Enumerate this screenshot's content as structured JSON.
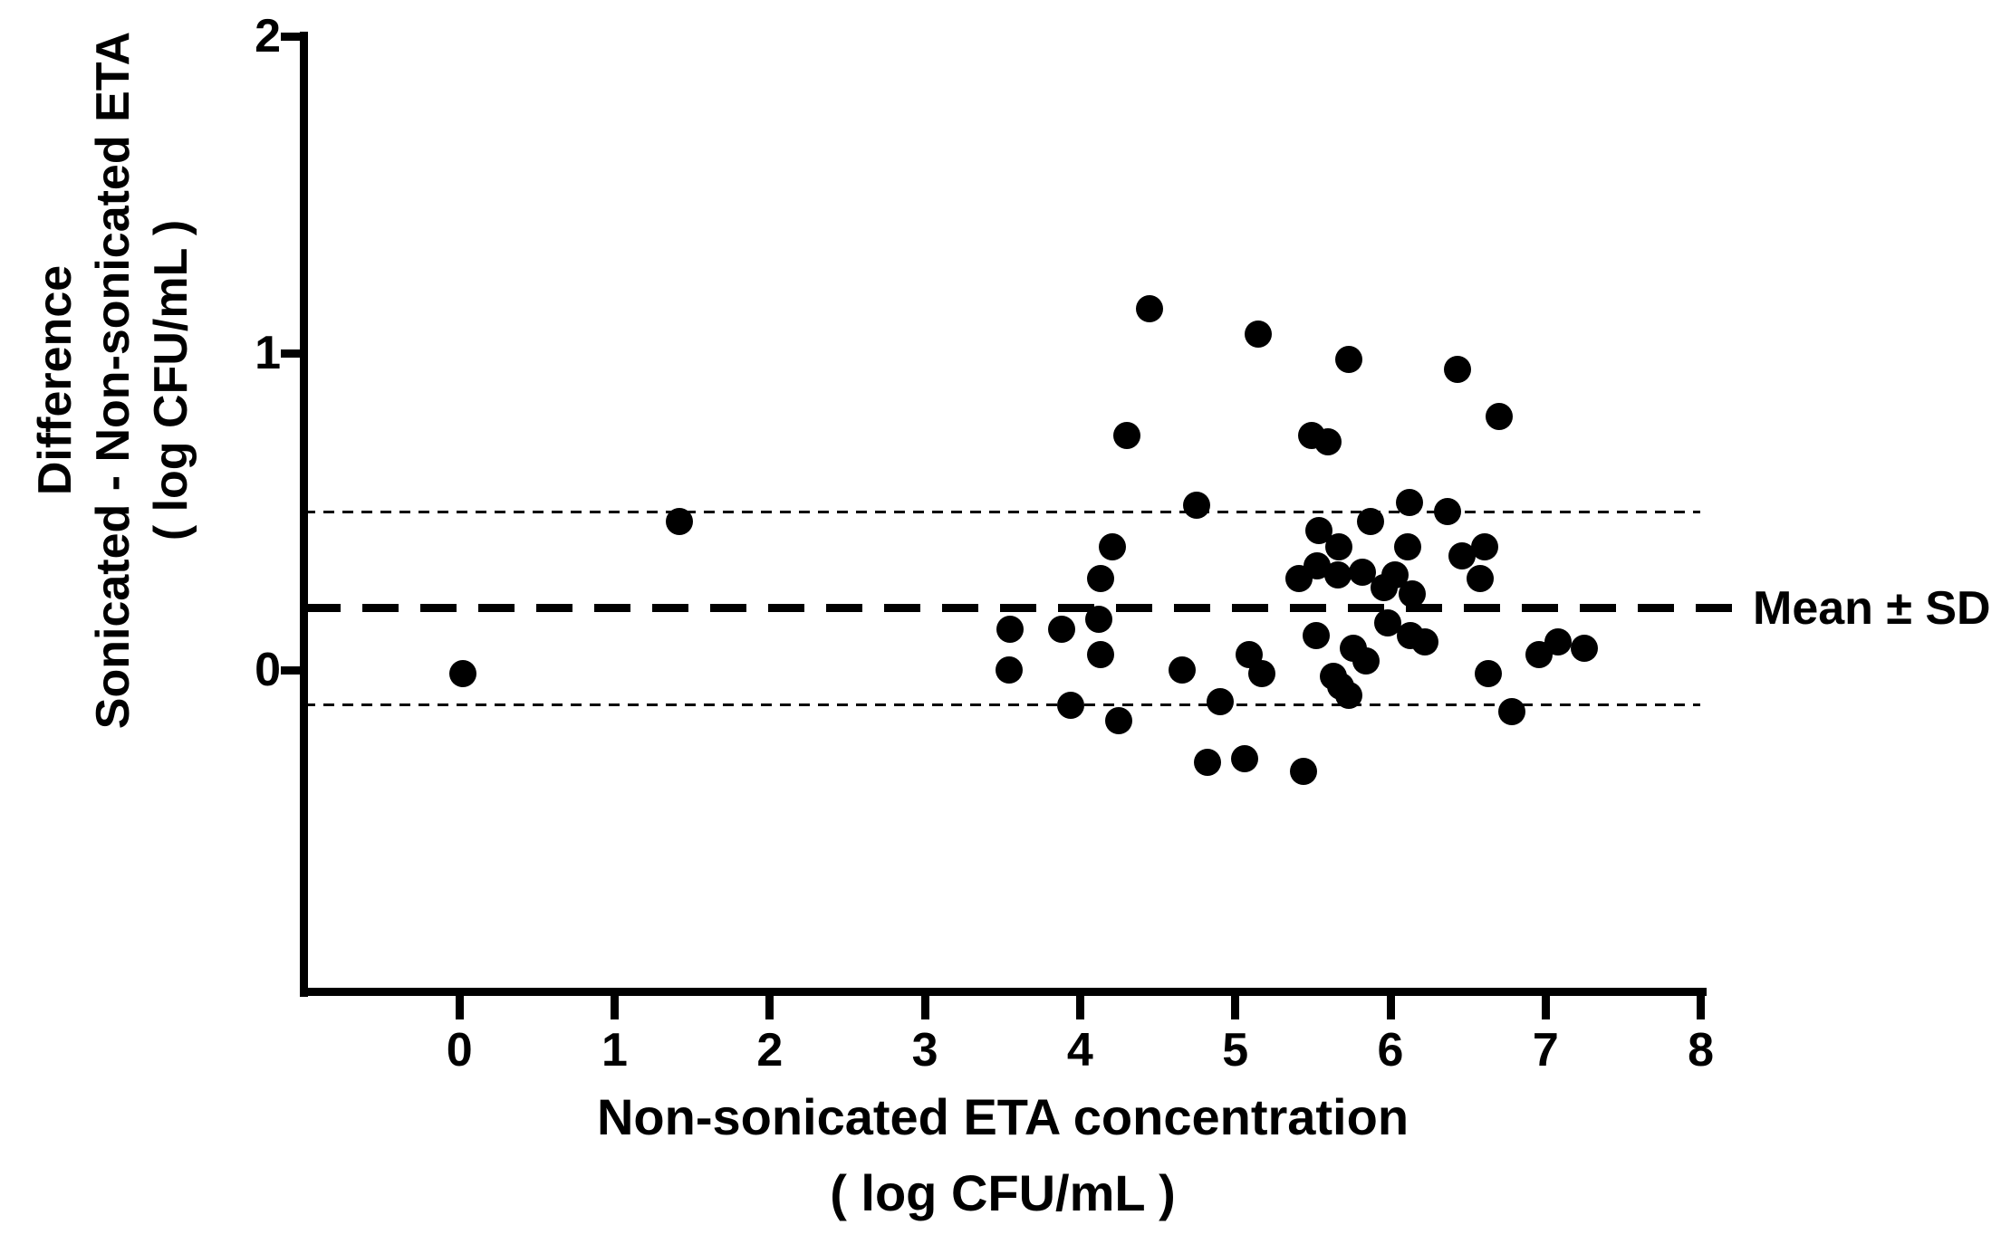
{
  "figure": {
    "background": "#ffffff",
    "ink_color": "#000000",
    "y_axis": {
      "title_lines": [
        "Difference",
        "Sonicated - Non-sonicated ETA",
        "( log CFU/mL )"
      ],
      "tick_labels": [
        "0",
        "1",
        "2"
      ],
      "tick_values": [
        0,
        1,
        2
      ]
    },
    "x_axis": {
      "title_lines": [
        "Non-sonicated ETA concentration",
        "( log CFU/mL )"
      ],
      "tick_labels": [
        "0",
        "1",
        "2",
        "3",
        "4",
        "5",
        "6",
        "7",
        "8"
      ],
      "tick_values": [
        0,
        1,
        2,
        3,
        4,
        5,
        6,
        7,
        8
      ]
    },
    "annotation_label": "Mean ± SD"
  },
  "chart_data": {
    "type": "scatter",
    "title": "",
    "xlabel": "Non-sonicated ETA concentration ( log CFU/mL )",
    "ylabel": "Difference Sonicated - Non-sonicated ETA ( log CFU/mL )",
    "xlim": [
      -1,
      8
    ],
    "ylim": [
      -1.02,
      2
    ],
    "x_ticks": [
      0,
      1,
      2,
      3,
      4,
      5,
      6,
      7,
      8
    ],
    "y_ticks": [
      0,
      1,
      2
    ],
    "grid": false,
    "legend_position": "right-of-mean-line",
    "marker": "filled-circle",
    "marker_color": "#000000",
    "reference_lines": {
      "mean": 0.195,
      "mean_plus_sd": 0.5,
      "mean_minus_sd": -0.11,
      "mean_style": "bold-dashed",
      "sd_style": "thin-dotted",
      "label": "Mean ± SD"
    },
    "points": [
      [
        0.02,
        -0.01
      ],
      [
        1.42,
        0.47
      ],
      [
        3.54,
        0.0
      ],
      [
        3.55,
        0.13
      ],
      [
        3.88,
        0.13
      ],
      [
        3.94,
        -0.11
      ],
      [
        4.12,
        0.16
      ],
      [
        4.13,
        0.29
      ],
      [
        4.13,
        0.05
      ],
      [
        4.21,
        0.39
      ],
      [
        4.25,
        -0.16
      ],
      [
        4.3,
        0.74
      ],
      [
        4.45,
        1.14
      ],
      [
        4.66,
        0.0
      ],
      [
        4.75,
        0.52
      ],
      [
        4.82,
        -0.29
      ],
      [
        4.9,
        -0.1
      ],
      [
        5.06,
        -0.28
      ],
      [
        5.09,
        0.05
      ],
      [
        5.15,
        1.06
      ],
      [
        5.17,
        -0.01
      ],
      [
        5.41,
        0.29
      ],
      [
        5.44,
        -0.32
      ],
      [
        5.49,
        0.74
      ],
      [
        5.52,
        0.11
      ],
      [
        5.53,
        0.33
      ],
      [
        5.54,
        0.44
      ],
      [
        5.6,
        0.72
      ],
      [
        5.63,
        -0.02
      ],
      [
        5.66,
        0.3
      ],
      [
        5.67,
        0.39
      ],
      [
        5.68,
        -0.05
      ],
      [
        5.73,
        -0.08
      ],
      [
        5.73,
        0.98
      ],
      [
        5.76,
        0.07
      ],
      [
        5.82,
        0.31
      ],
      [
        5.84,
        0.03
      ],
      [
        5.87,
        0.47
      ],
      [
        5.96,
        0.26
      ],
      [
        5.98,
        0.15
      ],
      [
        6.03,
        0.3
      ],
      [
        6.11,
        0.39
      ],
      [
        6.12,
        0.53
      ],
      [
        6.13,
        0.11
      ],
      [
        6.14,
        0.24
      ],
      [
        6.22,
        0.09
      ],
      [
        6.37,
        0.5
      ],
      [
        6.43,
        0.95
      ],
      [
        6.46,
        0.36
      ],
      [
        6.58,
        0.29
      ],
      [
        6.61,
        0.39
      ],
      [
        6.63,
        -0.01
      ],
      [
        6.7,
        0.8
      ],
      [
        6.78,
        -0.13
      ],
      [
        6.96,
        0.05
      ],
      [
        7.08,
        0.09
      ],
      [
        7.25,
        0.07
      ]
    ]
  }
}
